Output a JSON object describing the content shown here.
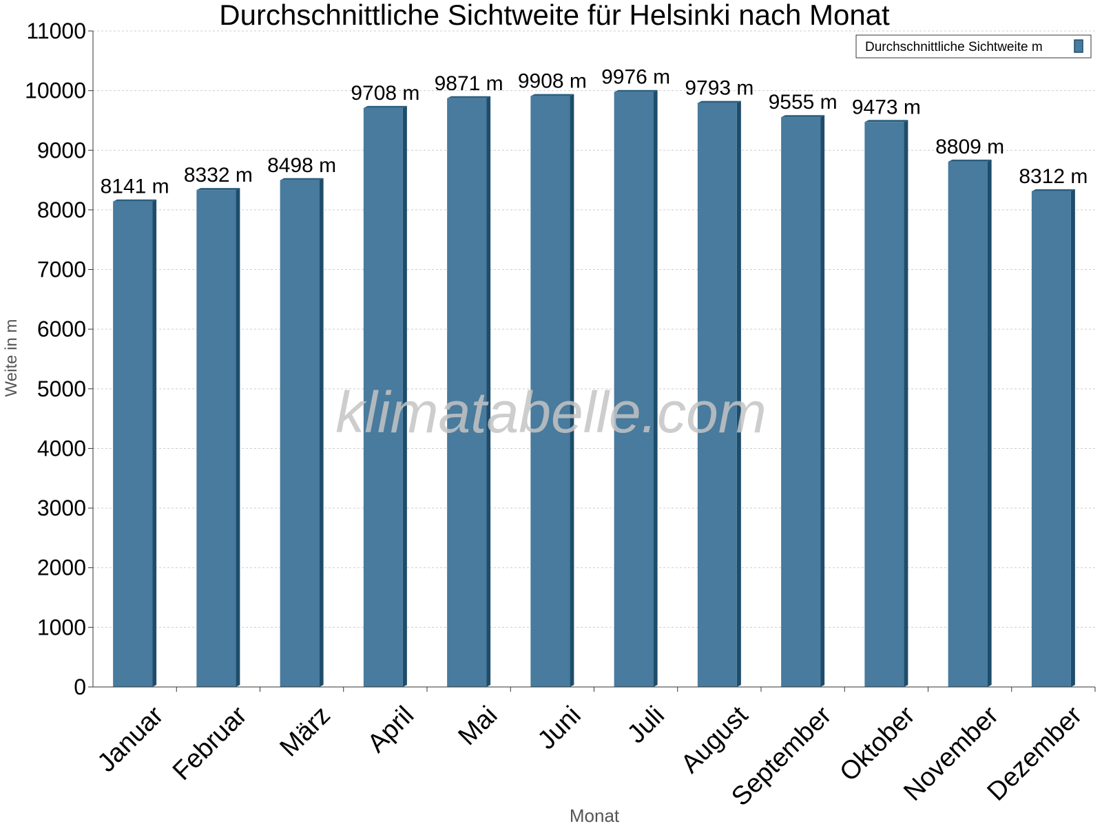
{
  "chart_data": {
    "type": "bar",
    "title": "Durchschnittliche Sichtweite für Helsinki nach Monat",
    "xlabel": "Monat",
    "ylabel": "Weite in m",
    "categories": [
      "Januar",
      "Februar",
      "März",
      "April",
      "Mai",
      "Juni",
      "Juli",
      "August",
      "September",
      "Oktober",
      "November",
      "Dezember"
    ],
    "series": [
      {
        "name": "Durchschnittliche Sichtweite m",
        "values": [
          8141,
          8332,
          8498,
          9708,
          9871,
          9908,
          9976,
          9793,
          9555,
          9473,
          8809,
          8312
        ],
        "labels": [
          "8141 m",
          "8332 m",
          "8498 m",
          "9708 m",
          "9871 m",
          "9908 m",
          "9976 m",
          "9793 m",
          "9555 m",
          "9473 m",
          "8809 m",
          "8312 m"
        ]
      }
    ],
    "ylim": [
      0,
      11000
    ],
    "yticks": [
      0,
      1000,
      2000,
      3000,
      4000,
      5000,
      6000,
      7000,
      8000,
      9000,
      10000,
      11000
    ],
    "grid": true,
    "legend_position": "top-right",
    "watermark": "klimatabelle.com",
    "colors": {
      "bar": "#487b9d",
      "bar_side": "#1e4d6b",
      "bar_top": "#2c5f80",
      "grid": "#cccccc",
      "axis": "#333333",
      "label": "#555555"
    }
  }
}
